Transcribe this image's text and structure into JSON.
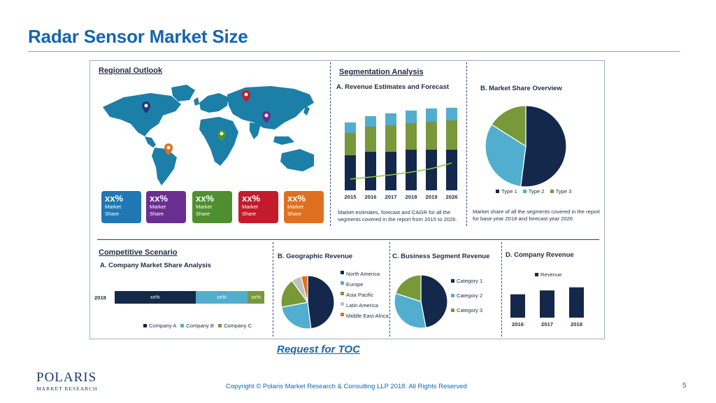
{
  "slide": {
    "title": "Radar Sensor Market Size",
    "toc_link": "Request for TOC",
    "copyright": "Copyright © Polaris Market Research & Consulting LLP 2018. All Rights Reserved",
    "page_number": "5",
    "logo": {
      "main": "POLARIS",
      "sub": "MARKET RESEARCH"
    }
  },
  "colors": {
    "title_blue": "#1565ad",
    "navy": "#13284a",
    "teal": "#1b7fa8",
    "sky": "#52aecf",
    "green": "#79983a",
    "red": "#c41b2a",
    "purple": "#6a2e91",
    "orange": "#e07020",
    "gray": "#bfbfbf"
  },
  "regional": {
    "heading": "Regional Outlook",
    "cards": [
      {
        "value": "xx%",
        "label1": "Market",
        "label2": "Share",
        "color": "#1f78b4"
      },
      {
        "value": "xx%",
        "label1": "Market",
        "label2": "Share",
        "color": "#6a2e91"
      },
      {
        "value": "xx%",
        "label1": "Market",
        "label2": "Share",
        "color": "#4f8f2f"
      },
      {
        "value": "xx%",
        "label1": "Market",
        "label2": "Share",
        "color": "#c41b2a"
      },
      {
        "value": "xx%",
        "label1": "Market",
        "label2": "Share",
        "color": "#e07020"
      }
    ]
  },
  "segmentation": {
    "heading": "Segmentation Analysis",
    "revenue_title": "A. Revenue Estimates and Forecast",
    "revenue_caption": "Market estimates, forecast and CAGR for all the segments covered in the report from 2015 to 2026.",
    "share_title": "B. Market Share Overview",
    "share_caption": "Market share of all the segments covered in the report for base year 2018 and forecast year 2026"
  },
  "competitive": {
    "heading": "Competitive Scenario",
    "title": "A. Company Market Share Analysis",
    "row_label": "2018",
    "segments": [
      {
        "label": "xx%",
        "share": 0.54,
        "color": "#13284a"
      },
      {
        "label": "xx%",
        "share": 0.35,
        "color": "#52aecf"
      },
      {
        "label": "xx%",
        "share": 0.11,
        "color": "#79983a"
      }
    ],
    "legend": [
      "Company A",
      "Company B",
      "Company C"
    ]
  },
  "geographic": {
    "title": "B. Geographic Revenue",
    "legend": [
      "North America",
      "Europe",
      "Asia Pacific",
      "Latin America",
      "Middle East Africa"
    ]
  },
  "business": {
    "title": "C. Business Segment Revenue",
    "legend": [
      "Category 1",
      "Category 2",
      "Category 3"
    ]
  },
  "company": {
    "title": "D. Company Revenue",
    "legend": "Revenue"
  },
  "chart_data": [
    {
      "type": "bar",
      "title": "A. Revenue Estimates and Forecast",
      "categories": [
        "2015",
        "2016",
        "2017",
        "2018",
        "2019",
        "2026"
      ],
      "series": [
        {
          "values": [
            50,
            55,
            55,
            58,
            58,
            58
          ],
          "color": "#13284a"
        },
        {
          "values": [
            32,
            36,
            38,
            38,
            40,
            42
          ],
          "color": "#79983a"
        },
        {
          "values": [
            15,
            15,
            17,
            18,
            19,
            18
          ],
          "color": "#52aecf"
        }
      ],
      "trend": [
        10,
        13,
        16,
        20,
        25,
        33
      ],
      "ylim": [
        0,
        120
      ]
    },
    {
      "type": "pie",
      "title": "B. Market Share Overview",
      "labels": [
        "Type 1",
        "Type 2",
        "Type 3"
      ],
      "values": [
        52,
        32,
        16
      ],
      "colors": [
        "#13284a",
        "#52aecf",
        "#79983a"
      ]
    },
    {
      "type": "pie",
      "title": "B. Geographic Revenue",
      "labels": [
        "North America",
        "Europe",
        "Asia Pacific",
        "Latin America",
        "Middle East Africa"
      ],
      "values": [
        48,
        24,
        18,
        6,
        4
      ],
      "colors": [
        "#13284a",
        "#52aecf",
        "#79983a",
        "#bfbfbf",
        "#e07020"
      ]
    },
    {
      "type": "pie",
      "title": "C. Business Segment Revenue",
      "labels": [
        "Category 1",
        "Category 2",
        "Category 3"
      ],
      "values": [
        47,
        33,
        20
      ],
      "colors": [
        "#13284a",
        "#52aecf",
        "#79983a"
      ]
    },
    {
      "type": "bar",
      "title": "D. Company Revenue",
      "categories": [
        "2016",
        "2017",
        "2018"
      ],
      "series": [
        {
          "name": "Revenue",
          "values": [
            30,
            35,
            39
          ],
          "color": "#13284a"
        }
      ],
      "ylim": [
        0,
        45
      ]
    }
  ]
}
